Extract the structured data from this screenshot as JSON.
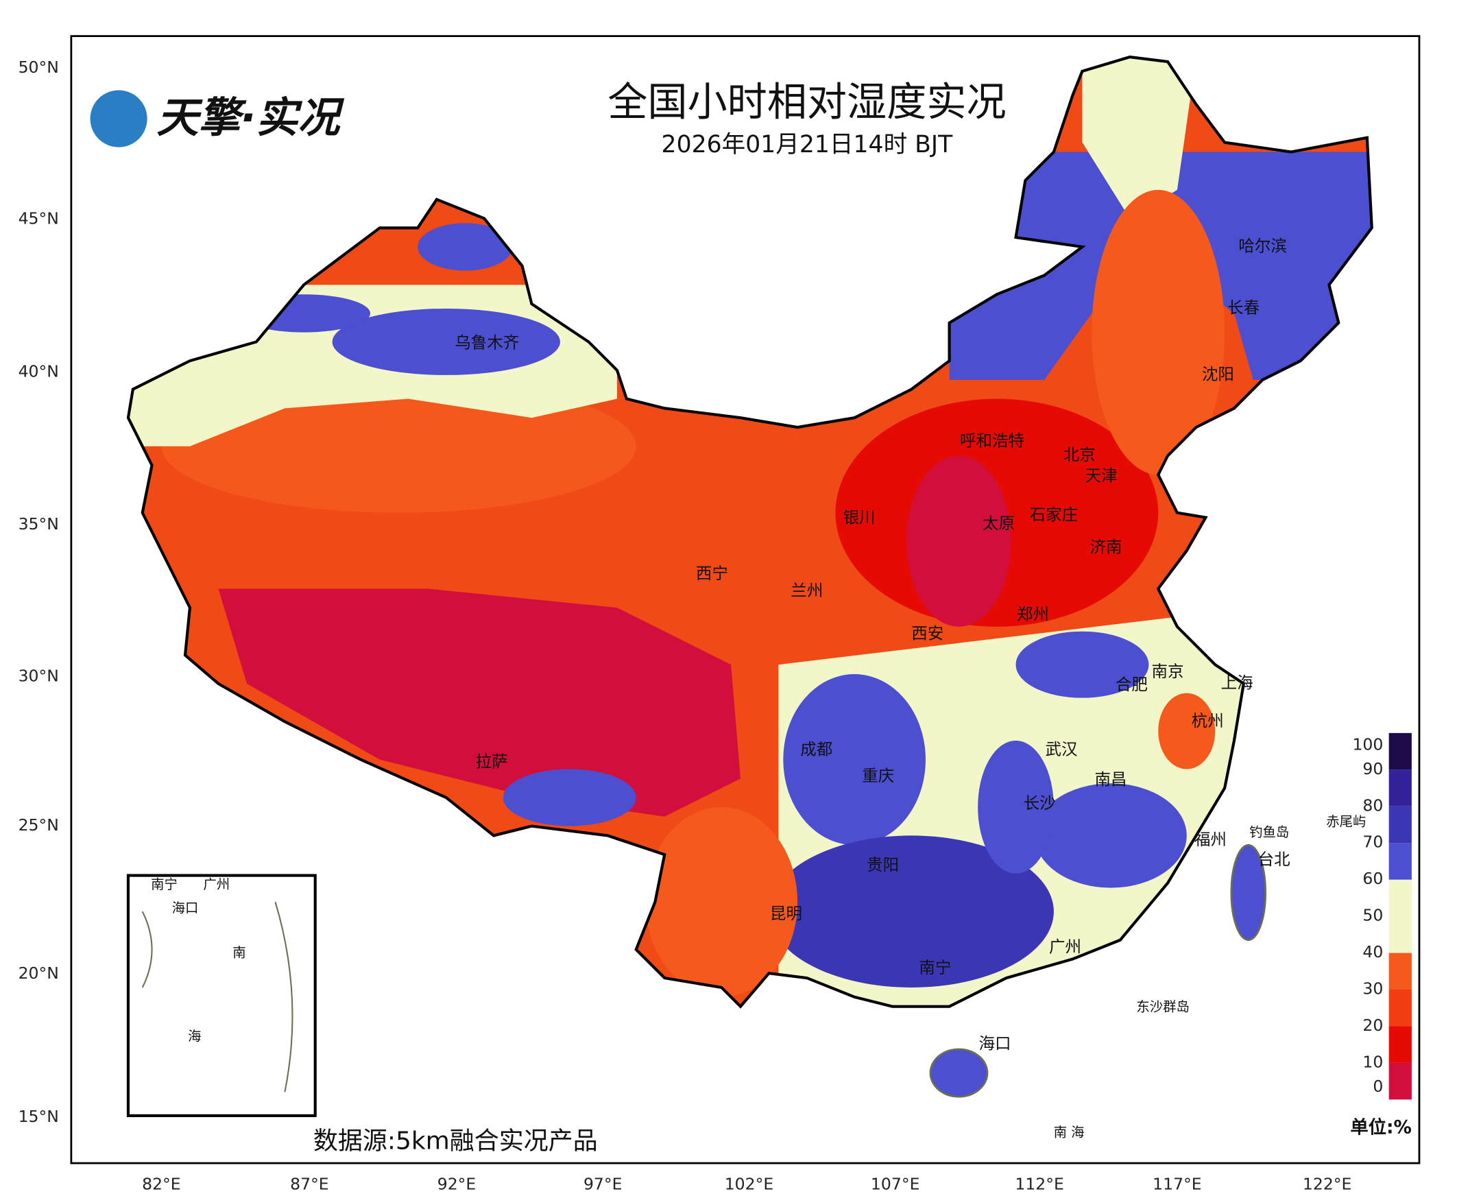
{
  "header": {
    "title": "全国小时相对湿度实况",
    "subtitle": "2026年01月21日14时 BJT",
    "logo": "天擎·实况"
  },
  "axes": {
    "lat_labels": [
      "50°N",
      "45°N",
      "40°N",
      "35°N",
      "30°N",
      "25°N",
      "20°N",
      "15°N"
    ],
    "lon_labels": [
      "82°E",
      "87°E",
      "92°E",
      "97°E",
      "102°E",
      "107°E",
      "112°E",
      "117°E",
      "122°E"
    ]
  },
  "cities": [
    "乌鲁木齐",
    "哈尔滨",
    "长春",
    "沈阳",
    "呼和浩特",
    "北京",
    "天津",
    "银川",
    "太原",
    "石家庄",
    "济南",
    "西宁",
    "兰州",
    "郑州",
    "西安",
    "南京",
    "合肥",
    "上海",
    "杭州",
    "成都",
    "武汉",
    "重庆",
    "南昌",
    "长沙",
    "拉萨",
    "福州",
    "台北",
    "贵阳",
    "昆明",
    "广州",
    "南宁",
    "海口"
  ],
  "islands": [
    "钓鱼岛",
    "赤尾屿",
    "东沙群岛",
    "南 海"
  ],
  "inset": {
    "labels": [
      "南宁",
      "广州",
      "海口",
      "南",
      "海"
    ]
  },
  "colorbar": {
    "ticks": [
      0,
      10,
      20,
      30,
      40,
      50,
      60,
      70,
      80,
      90,
      100
    ],
    "colors": [
      "#d20f3c",
      "#e60a05",
      "#f23c12",
      "#f55a1c",
      "#f3f6c8",
      "#f3f6c8",
      "#4b4fd0",
      "#3a36b4",
      "#34229a",
      "#1e0c4a"
    ],
    "unit": "单位:%"
  },
  "footer": {
    "source": "数据源:5km融合实况产品"
  }
}
